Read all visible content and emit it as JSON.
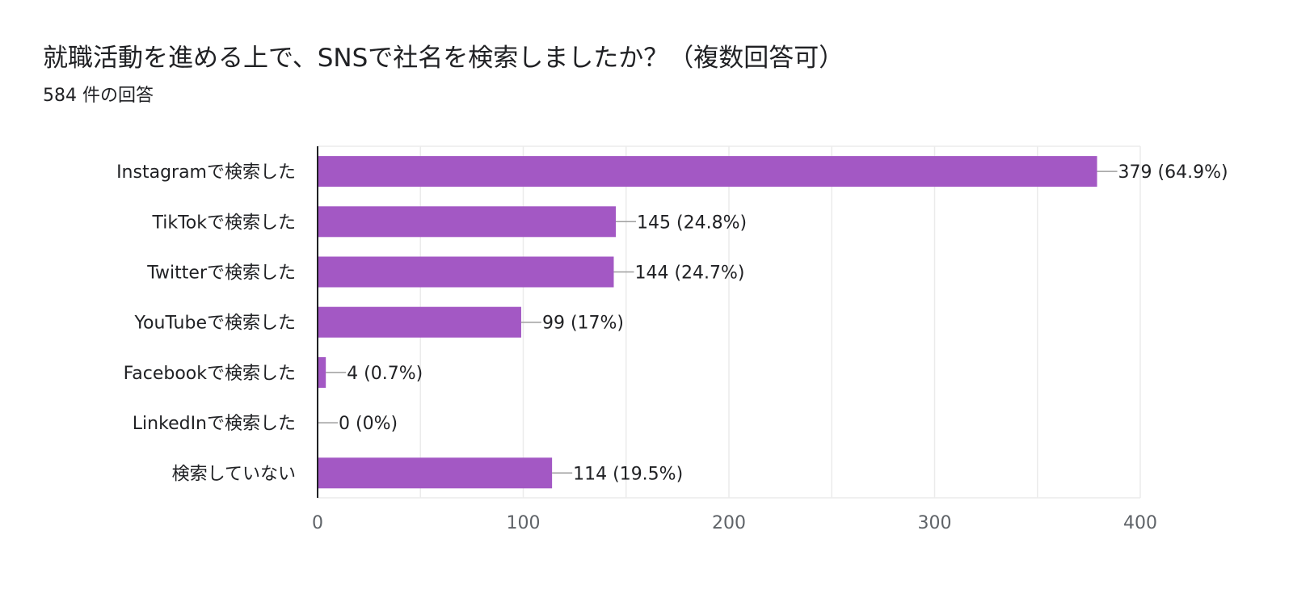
{
  "question": {
    "title": "就職活動を進める上で、SNSで社名を検索しましたか？（複数回答可）",
    "response_count": "584 件の回答"
  },
  "colors": {
    "bar": "#a358c4",
    "grid": "#ebebeb",
    "axis": "#202124",
    "connector": "#9e9e9e",
    "text": "#202124",
    "tick_text": "#5f6368"
  },
  "chart_data": {
    "type": "bar",
    "orientation": "horizontal",
    "title": "就職活動を進める上で、SNSで社名を検索しましたか？（複数回答可）",
    "subtitle": "584 件の回答",
    "categories": [
      "Instagramで検索した",
      "TikTokで検索した",
      "Twitterで検索した",
      "YouTubeで検索した",
      "Facebookで検索した",
      "LinkedInで検索した",
      "検索していない"
    ],
    "values": [
      379,
      145,
      144,
      99,
      4,
      0,
      114
    ],
    "data_labels": [
      "379 (64.9%)",
      "145 (24.8%)",
      "144 (24.7%)",
      "99 (17%)",
      "4 (0.7%)",
      "0 (0%)",
      "114 (19.5%)"
    ],
    "xlim": [
      0,
      400
    ],
    "xticks": [
      0,
      100,
      200,
      300,
      400
    ],
    "xtick_labels": [
      "0",
      "100",
      "200",
      "300",
      "400"
    ],
    "grid": true,
    "legend": "none"
  }
}
